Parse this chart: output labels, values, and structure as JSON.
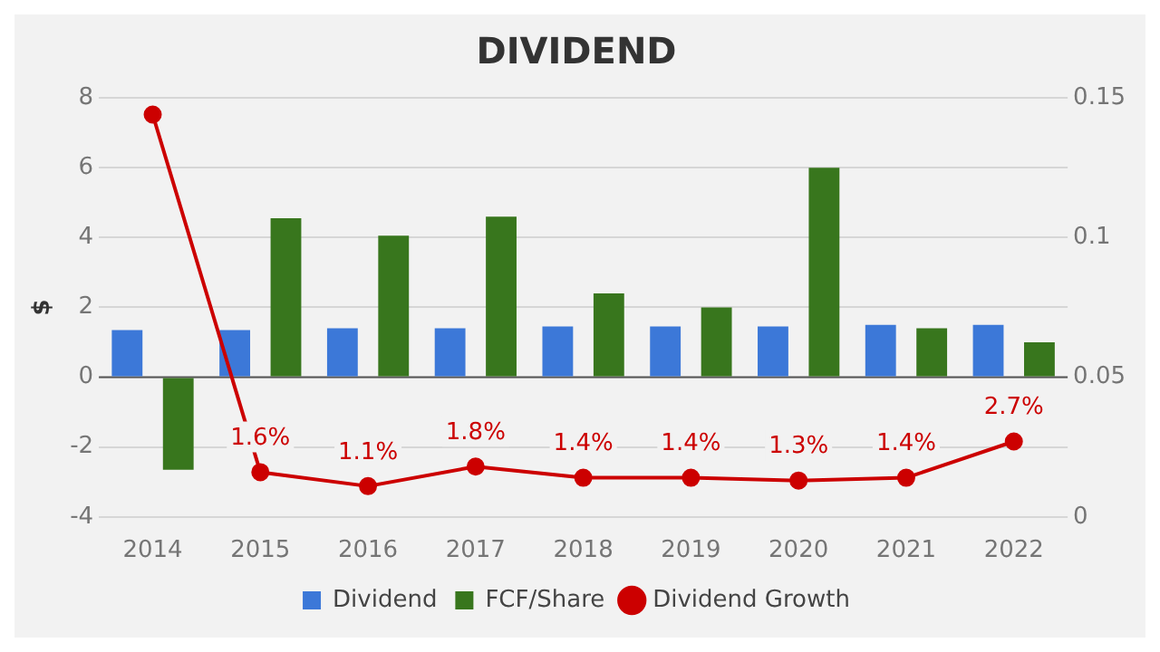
{
  "chart_data": {
    "type": "bar",
    "title": "DIVIDEND",
    "ylabel": "$",
    "categories": [
      "2014",
      "2015",
      "2016",
      "2017",
      "2018",
      "2019",
      "2020",
      "2021",
      "2022"
    ],
    "series": [
      {
        "name": "Dividend",
        "color": "#3c78d8",
        "values": [
          1.35,
          1.35,
          1.4,
          1.4,
          1.45,
          1.45,
          1.45,
          1.5,
          1.5
        ]
      },
      {
        "name": "FCF/Share",
        "color": "#38761d",
        "values": [
          -2.65,
          4.55,
          4.05,
          4.6,
          2.4,
          2.0,
          6.0,
          1.4,
          1.0
        ]
      },
      {
        "name": "Dividend Growth",
        "type": "line",
        "axis": "y2",
        "marker": "circle",
        "color": "#cc0000",
        "values": [
          0.144,
          0.016,
          0.011,
          0.018,
          0.014,
          0.014,
          0.013,
          0.014,
          0.027
        ],
        "value_labels": [
          null,
          "1.6%",
          "1.1%",
          "1.8%",
          "1.4%",
          "1.4%",
          "1.3%",
          "1.4%",
          "2.7%"
        ]
      }
    ],
    "ylim": [
      -4,
      8
    ],
    "yticks": [
      -4,
      -2,
      0,
      2,
      4,
      6,
      8
    ],
    "y2lim": [
      0,
      0.15
    ],
    "y2ticks": [
      0,
      0.05,
      0.1,
      0.15
    ],
    "grid": "y",
    "legend": "bottom"
  }
}
